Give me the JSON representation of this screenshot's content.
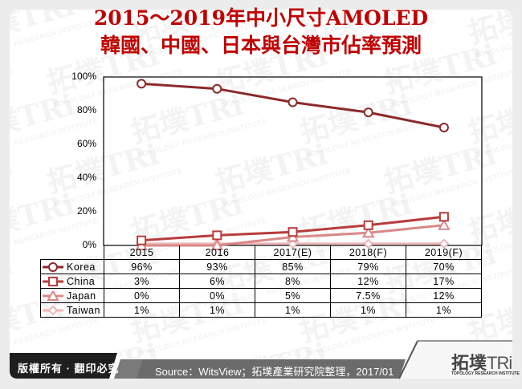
{
  "title": {
    "line1": "2015～2019年中小尺寸AMOLED",
    "line2": "韓國、中國、日本與台灣市佔率預測"
  },
  "footer": {
    "copyright": "版權所有 · 翻印必究",
    "source": "Source：WitsView；拓墣產業研究院整理，2017/01",
    "logo_cn": "拓墣",
    "logo_tri": "TRi",
    "logo_sub": "TOPOLOGY RESEARCH INSTITUTE"
  },
  "watermark": {
    "text": "拓墣TRi",
    "sub": "TOPOLOGY RESEARCH INSTITUTE"
  },
  "colors": {
    "title": "#c00000",
    "korea": "#8b2a2a",
    "china": "#b83c3c",
    "japan": "#d98888",
    "taiwan": "#ebb8b8"
  },
  "chart_data": {
    "type": "line",
    "title": "2015～2019年中小尺寸AMOLED 韓國、中國、日本與台灣市佔率預測",
    "xlabel": "",
    "ylabel": "",
    "ylim": [
      0,
      100
    ],
    "yticks": [
      "0%",
      "20%",
      "40%",
      "60%",
      "80%",
      "100%"
    ],
    "categories": [
      "2015",
      "2016",
      "2017(E)",
      "2018(F)",
      "2019(F)"
    ],
    "grid": false,
    "legend_position": "data-table",
    "series": [
      {
        "name": "Korea",
        "marker": "circle",
        "values": [
          96,
          93,
          85,
          79,
          70
        ],
        "labels": [
          "96%",
          "93%",
          "85%",
          "79%",
          "70%"
        ]
      },
      {
        "name": "China",
        "marker": "square",
        "values": [
          3,
          6,
          8,
          12,
          17
        ],
        "labels": [
          "3%",
          "6%",
          "8%",
          "12%",
          "17%"
        ]
      },
      {
        "name": "Japan",
        "marker": "triangle",
        "values": [
          0,
          0,
          5,
          7.5,
          12
        ],
        "labels": [
          "0%",
          "0%",
          "5%",
          "7.5%",
          "12%"
        ]
      },
      {
        "name": "Taiwan",
        "marker": "diamond",
        "values": [
          1,
          1,
          1,
          1,
          1
        ],
        "labels": [
          "1%",
          "1%",
          "1%",
          "1%",
          "1%"
        ]
      }
    ]
  }
}
